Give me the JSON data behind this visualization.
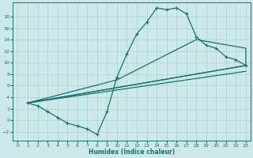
{
  "background_color": "#cce8e8",
  "line_color": "#1a7070",
  "grid_color": "#aad0d0",
  "xlabel": "Humidex (Indice chaleur)",
  "xlim": [
    -0.5,
    23.5
  ],
  "ylim": [
    -3.5,
    20.5
  ],
  "xticks": [
    0,
    1,
    2,
    3,
    4,
    5,
    6,
    7,
    8,
    9,
    10,
    11,
    12,
    13,
    14,
    15,
    16,
    17,
    18,
    19,
    20,
    21,
    22,
    23
  ],
  "yticks": [
    -2,
    0,
    2,
    4,
    6,
    8,
    10,
    12,
    14,
    16,
    18
  ],
  "curve_x": [
    1,
    2,
    3,
    4,
    5,
    6,
    7,
    8,
    9,
    10,
    11,
    12,
    13,
    14,
    15,
    16,
    17,
    18,
    19,
    20,
    21,
    22,
    23
  ],
  "curve_y": [
    3,
    2.5,
    1.5,
    0.5,
    -0.5,
    -1.0,
    -1.5,
    -2.5,
    1.5,
    7.5,
    11.5,
    15.0,
    17.0,
    19.5,
    19.2,
    19.5,
    18.5,
    14.5,
    13.0,
    12.5,
    11.0,
    10.5,
    9.5
  ],
  "trap_x": [
    1,
    10,
    18,
    23,
    23,
    1
  ],
  "trap_y": [
    3,
    7,
    14,
    12.5,
    9.5,
    3
  ],
  "line2_x": [
    1,
    23
  ],
  "line2_y": [
    3,
    8.5
  ],
  "line3_x": [
    1,
    23
  ],
  "line3_y": [
    3,
    9.5
  ]
}
